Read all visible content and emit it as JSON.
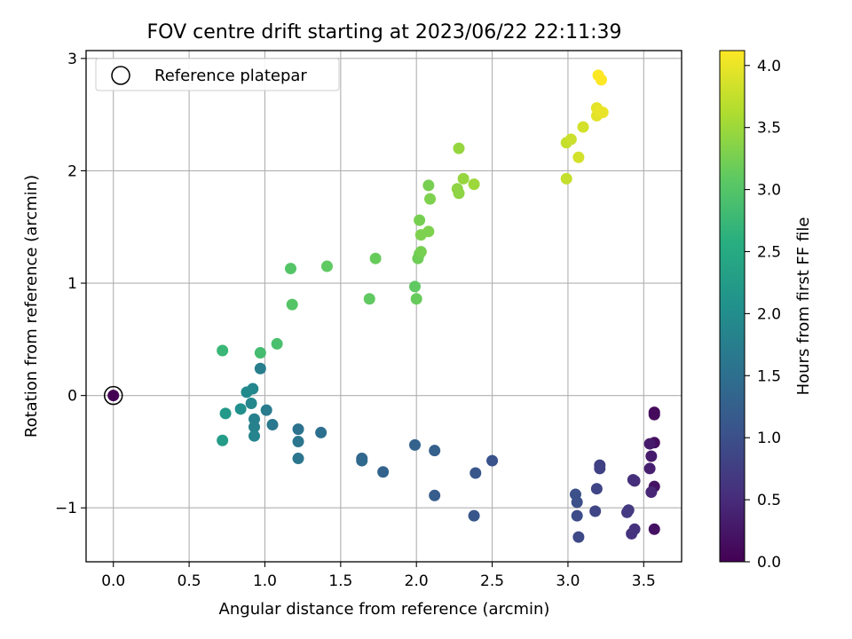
{
  "chart_data": {
    "type": "scatter",
    "title": "FOV centre drift starting at 2023/06/22 22:11:39",
    "xlabel": "Angular distance from reference (arcmin)",
    "ylabel": "Rotation from reference (arcmin)",
    "xlim": [
      -0.18,
      3.75
    ],
    "ylim": [
      -1.48,
      3.07
    ],
    "xticks": [
      0.0,
      0.5,
      1.0,
      1.5,
      2.0,
      2.5,
      3.0,
      3.5
    ],
    "xtick_labels": [
      "0.0",
      "0.5",
      "1.0",
      "1.5",
      "2.0",
      "2.5",
      "3.0",
      "3.5"
    ],
    "yticks": [
      -1,
      0,
      1,
      2,
      3
    ],
    "ytick_labels": [
      "−1",
      "0",
      "1",
      "2",
      "3"
    ],
    "grid": true,
    "legend": {
      "position": "top-left",
      "entries": [
        "Reference platepar"
      ]
    },
    "colorbar": {
      "label": "Hours from first FF file",
      "colormap": "viridis",
      "range": [
        0.0,
        4.12
      ],
      "ticks": [
        0.0,
        0.5,
        1.0,
        1.5,
        2.0,
        2.5,
        3.0,
        3.5,
        4.0
      ],
      "tick_labels": [
        "0.0",
        "0.5",
        "1.0",
        "1.5",
        "2.0",
        "2.5",
        "3.0",
        "3.5",
        "4.0"
      ]
    },
    "reference_point": {
      "x": 0.0,
      "y": 0.0,
      "c": 0.0
    },
    "points": [
      {
        "x": 3.57,
        "y": -0.15,
        "c": 0.1
      },
      {
        "x": 3.57,
        "y": -0.17,
        "c": 0.1
      },
      {
        "x": 3.57,
        "y": -0.42,
        "c": 0.15
      },
      {
        "x": 3.57,
        "y": -0.81,
        "c": 0.2
      },
      {
        "x": 3.57,
        "y": -1.19,
        "c": 0.2
      },
      {
        "x": 3.55,
        "y": -0.54,
        "c": 0.3
      },
      {
        "x": 3.54,
        "y": -0.43,
        "c": 0.3
      },
      {
        "x": 3.54,
        "y": -0.65,
        "c": 0.35
      },
      {
        "x": 3.55,
        "y": -0.86,
        "c": 0.45
      },
      {
        "x": 3.44,
        "y": -0.76,
        "c": 0.5
      },
      {
        "x": 3.43,
        "y": -0.75,
        "c": 0.55
      },
      {
        "x": 3.44,
        "y": -1.19,
        "c": 0.6
      },
      {
        "x": 3.42,
        "y": -1.23,
        "c": 0.6
      },
      {
        "x": 3.4,
        "y": -1.02,
        "c": 0.7
      },
      {
        "x": 3.39,
        "y": -1.04,
        "c": 0.7
      },
      {
        "x": 3.21,
        "y": -0.62,
        "c": 0.8
      },
      {
        "x": 3.21,
        "y": -0.65,
        "c": 0.8
      },
      {
        "x": 3.19,
        "y": -0.83,
        "c": 0.85
      },
      {
        "x": 3.18,
        "y": -1.03,
        "c": 0.85
      },
      {
        "x": 3.07,
        "y": -1.26,
        "c": 0.9
      },
      {
        "x": 3.06,
        "y": -1.07,
        "c": 0.95
      },
      {
        "x": 3.06,
        "y": -0.95,
        "c": 1.0
      },
      {
        "x": 3.05,
        "y": -0.88,
        "c": 1.0
      },
      {
        "x": 2.5,
        "y": -0.58,
        "c": 1.05
      },
      {
        "x": 2.39,
        "y": -0.69,
        "c": 1.1
      },
      {
        "x": 2.38,
        "y": -1.07,
        "c": 1.1
      },
      {
        "x": 2.12,
        "y": -0.89,
        "c": 1.2
      },
      {
        "x": 2.12,
        "y": -0.49,
        "c": 1.25
      },
      {
        "x": 1.99,
        "y": -0.44,
        "c": 1.3
      },
      {
        "x": 1.78,
        "y": -0.68,
        "c": 1.3
      },
      {
        "x": 1.64,
        "y": -0.56,
        "c": 1.35
      },
      {
        "x": 1.64,
        "y": -0.58,
        "c": 1.4
      },
      {
        "x": 1.37,
        "y": -0.33,
        "c": 1.5
      },
      {
        "x": 1.22,
        "y": -0.3,
        "c": 1.55
      },
      {
        "x": 1.22,
        "y": -0.41,
        "c": 1.6
      },
      {
        "x": 1.22,
        "y": -0.56,
        "c": 1.6
      },
      {
        "x": 1.05,
        "y": -0.26,
        "c": 1.65
      },
      {
        "x": 1.01,
        "y": -0.13,
        "c": 1.7
      },
      {
        "x": 0.97,
        "y": 0.24,
        "c": 1.75
      },
      {
        "x": 0.93,
        "y": -0.21,
        "c": 1.8
      },
      {
        "x": 0.93,
        "y": -0.28,
        "c": 1.8
      },
      {
        "x": 0.93,
        "y": -0.36,
        "c": 1.85
      },
      {
        "x": 0.92,
        "y": 0.06,
        "c": 1.9
      },
      {
        "x": 0.91,
        "y": -0.07,
        "c": 1.9
      },
      {
        "x": 0.88,
        "y": 0.03,
        "c": 1.95
      },
      {
        "x": 0.84,
        "y": -0.12,
        "c": 2.05
      },
      {
        "x": 0.74,
        "y": -0.16,
        "c": 2.2
      },
      {
        "x": 0.72,
        "y": -0.4,
        "c": 2.25
      },
      {
        "x": 0.72,
        "y": 0.4,
        "c": 2.75
      },
      {
        "x": 0.97,
        "y": 0.38,
        "c": 2.85
      },
      {
        "x": 1.08,
        "y": 0.46,
        "c": 2.9
      },
      {
        "x": 1.17,
        "y": 1.13,
        "c": 3.0
      },
      {
        "x": 1.18,
        "y": 0.81,
        "c": 3.0
      },
      {
        "x": 1.41,
        "y": 1.15,
        "c": 3.1
      },
      {
        "x": 1.69,
        "y": 0.86,
        "c": 3.1
      },
      {
        "x": 1.73,
        "y": 1.22,
        "c": 3.15
      },
      {
        "x": 1.99,
        "y": 0.97,
        "c": 3.1
      },
      {
        "x": 2.0,
        "y": 0.86,
        "c": 3.15
      },
      {
        "x": 2.01,
        "y": 1.22,
        "c": 3.2
      },
      {
        "x": 2.02,
        "y": 1.26,
        "c": 3.2
      },
      {
        "x": 2.03,
        "y": 1.28,
        "c": 3.25
      },
      {
        "x": 2.02,
        "y": 1.56,
        "c": 3.25
      },
      {
        "x": 2.03,
        "y": 1.43,
        "c": 3.3
      },
      {
        "x": 2.08,
        "y": 1.46,
        "c": 3.3
      },
      {
        "x": 2.08,
        "y": 1.87,
        "c": 3.25
      },
      {
        "x": 2.09,
        "y": 1.75,
        "c": 3.3
      },
      {
        "x": 2.27,
        "y": 1.84,
        "c": 3.4
      },
      {
        "x": 2.28,
        "y": 1.8,
        "c": 3.4
      },
      {
        "x": 2.28,
        "y": 2.2,
        "c": 3.45
      },
      {
        "x": 2.31,
        "y": 1.93,
        "c": 3.45
      },
      {
        "x": 2.38,
        "y": 1.88,
        "c": 3.5
      },
      {
        "x": 2.99,
        "y": 1.93,
        "c": 3.75
      },
      {
        "x": 2.99,
        "y": 2.25,
        "c": 3.75
      },
      {
        "x": 3.02,
        "y": 2.28,
        "c": 3.8
      },
      {
        "x": 3.07,
        "y": 2.12,
        "c": 3.85
      },
      {
        "x": 3.1,
        "y": 2.39,
        "c": 3.85
      },
      {
        "x": 3.19,
        "y": 2.49,
        "c": 3.95
      },
      {
        "x": 3.19,
        "y": 2.56,
        "c": 3.95
      },
      {
        "x": 3.21,
        "y": 2.53,
        "c": 4.0
      },
      {
        "x": 3.23,
        "y": 2.52,
        "c": 4.0
      },
      {
        "x": 3.2,
        "y": 2.85,
        "c": 4.1
      },
      {
        "x": 3.22,
        "y": 2.81,
        "c": 4.12
      }
    ]
  }
}
